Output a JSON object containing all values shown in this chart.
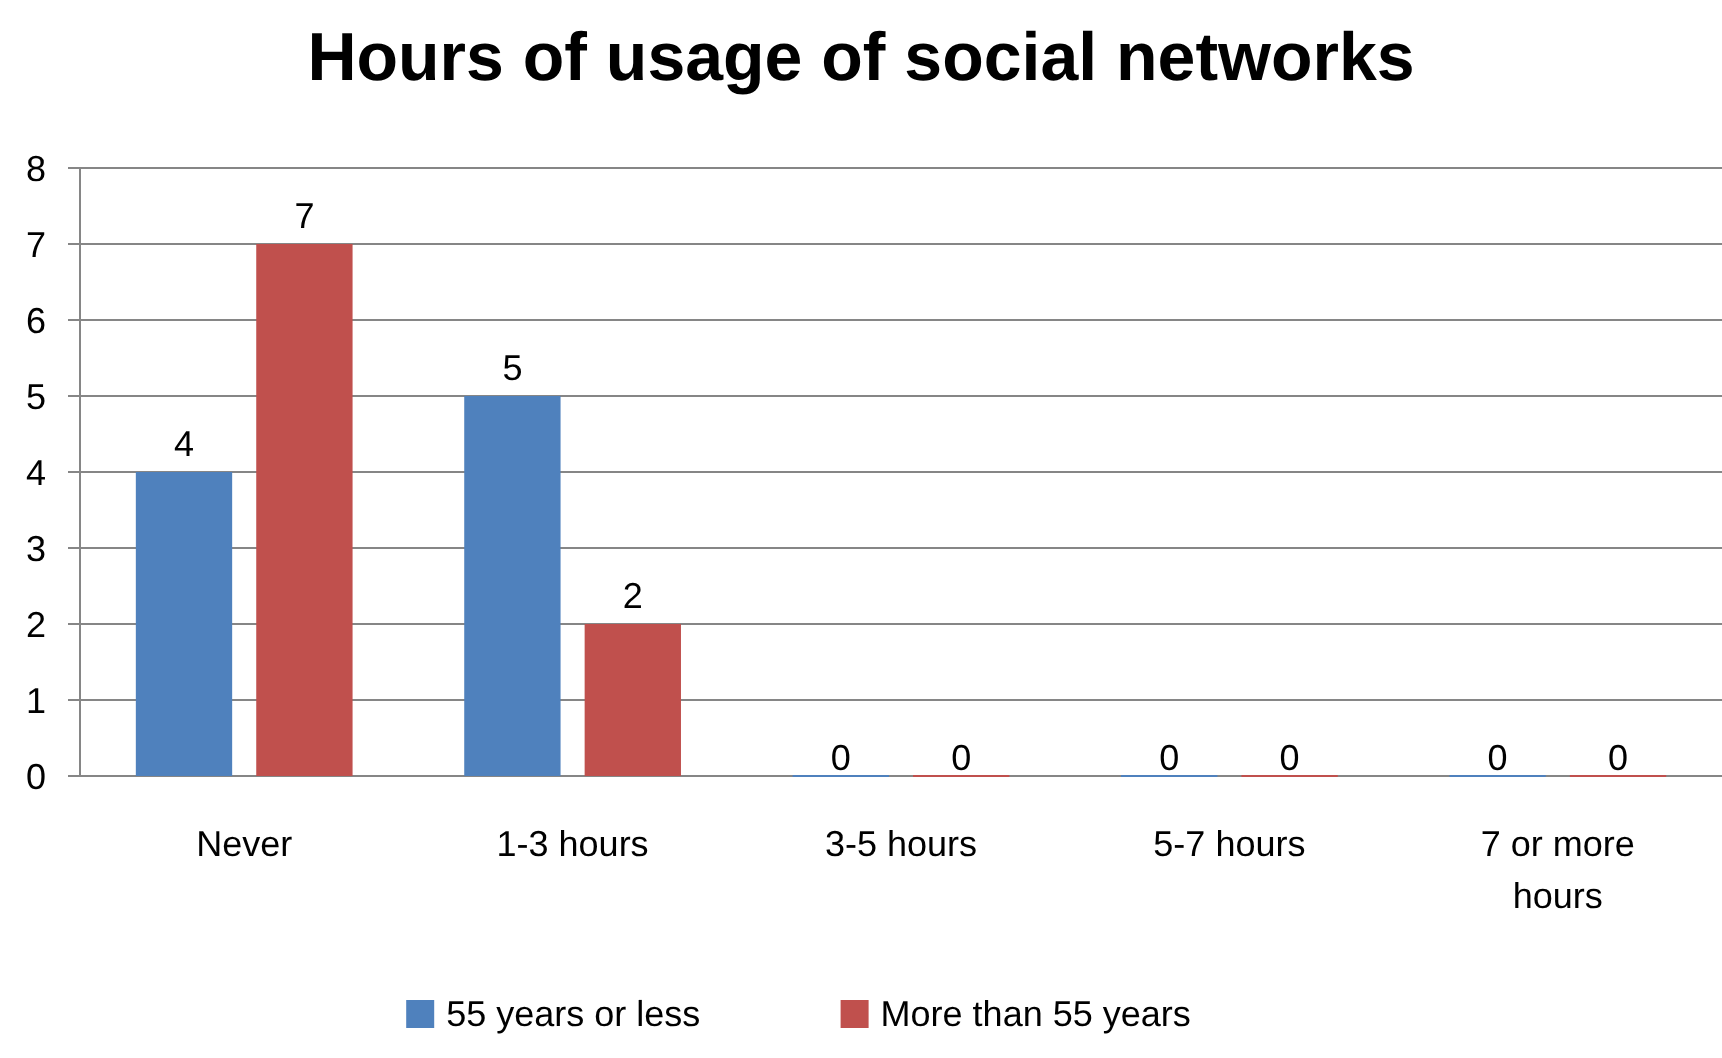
{
  "chart_data": {
    "type": "bar",
    "title": "Hours of usage of social networks",
    "categories": [
      "Never",
      "1-3 hours",
      "3-5 hours",
      "5-7 hours",
      "7 or more hours"
    ],
    "series": [
      {
        "name": "55 years or less",
        "color": "#4f81bd",
        "values": [
          4,
          5,
          0,
          0,
          0
        ]
      },
      {
        "name": "More than 55 years",
        "color": "#c0504d",
        "values": [
          7,
          2,
          0,
          0,
          0
        ]
      }
    ],
    "ylim": [
      0,
      8
    ],
    "yticks": [
      0,
      1,
      2,
      3,
      4,
      5,
      6,
      7,
      8
    ],
    "grid": "y",
    "legend": "bottom",
    "data_labels": true
  }
}
